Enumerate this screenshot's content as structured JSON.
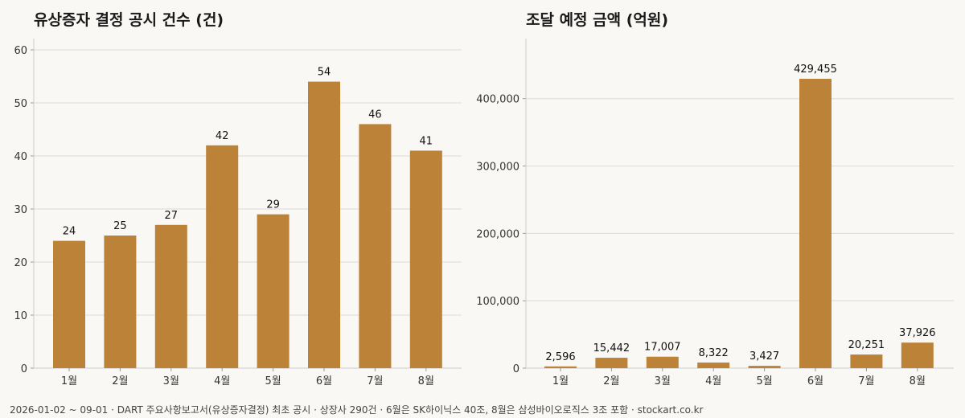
{
  "colors": {
    "bar": "#bc8238",
    "grid": "#dcdad5",
    "axis": "#cccccc",
    "background": "#faf8f4"
  },
  "chart_data": [
    {
      "type": "bar",
      "title": "유상증자 결정 공시 건수 (건)",
      "categories": [
        "1월",
        "2월",
        "3월",
        "4월",
        "5월",
        "6월",
        "7월",
        "8월"
      ],
      "values": [
        24,
        25,
        27,
        42,
        29,
        54,
        46,
        41
      ],
      "value_labels": [
        "24",
        "25",
        "27",
        "42",
        "29",
        "54",
        "46",
        "41"
      ],
      "ylim": [
        0,
        60
      ],
      "yticks": [
        0,
        10,
        20,
        30,
        40,
        50,
        60
      ],
      "ytick_labels": [
        "0",
        "10",
        "20",
        "30",
        "40",
        "50",
        "60"
      ],
      "grid": "horizontal",
      "legend": "none"
    },
    {
      "type": "bar",
      "title": "조달 예정 금액 (억원)",
      "categories": [
        "1월",
        "2월",
        "3월",
        "4월",
        "5월",
        "6월",
        "7월",
        "8월"
      ],
      "values": [
        2596,
        15442,
        17007,
        8322,
        3427,
        429455,
        20251,
        37926
      ],
      "value_labels": [
        "2,596",
        "15,442",
        "17,007",
        "8,322",
        "3,427",
        "429,455",
        "20,251",
        "37,926"
      ],
      "ylim": [
        0,
        472400
      ],
      "yticks": [
        0,
        100000,
        200000,
        300000,
        400000
      ],
      "ytick_labels": [
        "0",
        "100,000",
        "200,000",
        "300,000",
        "400,000"
      ],
      "grid": "horizontal",
      "legend": "none"
    }
  ],
  "footer": "2026-01-02 ~ 09-01 · DART 주요사항보고서(유상증자결정) 최초 공시 · 상장사 290건 · 6월은 SK하이닉스 40조, 8월은 삼성바이오로직스 3조 포함 · stockart.co.kr"
}
